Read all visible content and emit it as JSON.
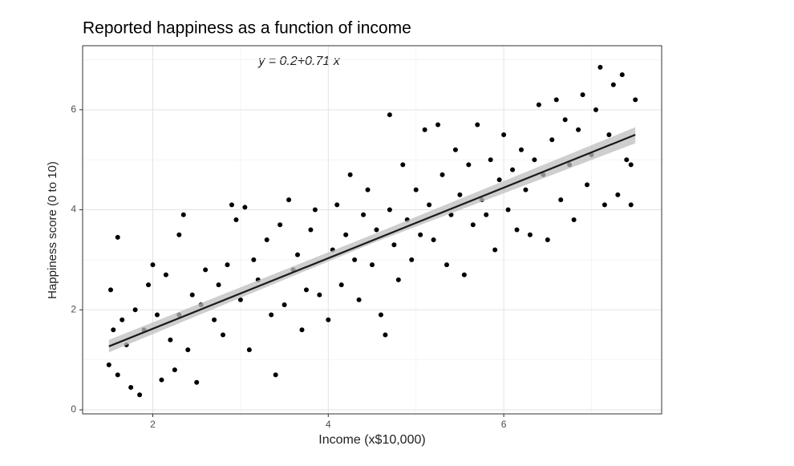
{
  "chart_data": {
    "type": "scatter",
    "title": "Reported happiness as a function of income",
    "xlabel": "Income (x$10,000)",
    "ylabel": "Happiness score (0 to 10)",
    "annotation": "y = 0.2+0.71 x",
    "xlim": [
      1.2,
      7.8
    ],
    "ylim": [
      -0.08,
      7.28
    ],
    "xticks": [
      2,
      4,
      6
    ],
    "yticks": [
      0,
      2,
      4,
      6
    ],
    "xminor": [
      3,
      5,
      7
    ],
    "yminor": [
      1,
      3,
      5,
      7
    ],
    "grid": true,
    "color": "#000000",
    "line_color": "#1a1a1a",
    "band_color": "#bdbdbd",
    "fit_line": {
      "x": [
        1.5,
        7.5
      ],
      "y": [
        1.27,
        5.5
      ]
    },
    "band": {
      "x": [
        1.5,
        4.5,
        7.5
      ],
      "lower": [
        1.15,
        3.33,
        5.33
      ],
      "upper": [
        1.4,
        3.5,
        5.65
      ]
    },
    "x": [
      1.5,
      1.55,
      1.6,
      1.52,
      1.6,
      1.65,
      1.7,
      1.75,
      1.8,
      1.85,
      1.9,
      1.95,
      2.0,
      2.05,
      2.1,
      2.15,
      2.2,
      2.25,
      2.3,
      2.35,
      2.3,
      2.4,
      2.45,
      2.5,
      2.55,
      2.6,
      2.7,
      2.75,
      2.8,
      2.85,
      2.9,
      2.95,
      3.0,
      3.05,
      3.1,
      3.15,
      3.2,
      3.3,
      3.35,
      3.4,
      3.45,
      3.5,
      3.55,
      3.6,
      3.65,
      3.7,
      3.75,
      3.8,
      3.85,
      3.9,
      4.0,
      4.05,
      4.1,
      4.15,
      4.2,
      4.25,
      4.3,
      4.35,
      4.4,
      4.45,
      4.5,
      4.55,
      4.6,
      4.65,
      4.7,
      4.7,
      4.75,
      4.8,
      4.85,
      4.9,
      4.95,
      5.0,
      5.05,
      5.1,
      5.15,
      5.2,
      5.25,
      5.3,
      5.35,
      5.4,
      5.45,
      5.5,
      5.55,
      5.6,
      5.65,
      5.7,
      5.75,
      5.8,
      5.85,
      5.9,
      5.95,
      6.0,
      6.05,
      6.1,
      6.15,
      6.2,
      6.25,
      6.3,
      6.35,
      6.4,
      6.45,
      6.5,
      6.55,
      6.6,
      6.65,
      6.7,
      6.75,
      6.8,
      6.85,
      6.9,
      6.95,
      7.0,
      7.05,
      7.1,
      7.15,
      7.2,
      7.25,
      7.3,
      7.35,
      7.4,
      7.45,
      7.5,
      7.45
    ],
    "y": [
      0.9,
      1.6,
      3.45,
      2.4,
      0.7,
      1.8,
      1.3,
      0.45,
      2.0,
      0.3,
      1.6,
      2.5,
      2.9,
      1.9,
      0.6,
      2.7,
      1.4,
      0.8,
      3.5,
      3.9,
      1.9,
      1.2,
      2.3,
      0.55,
      2.1,
      2.8,
      1.8,
      2.5,
      1.5,
      2.9,
      4.1,
      3.8,
      2.2,
      4.05,
      1.2,
      3.0,
      2.6,
      3.4,
      1.9,
      0.7,
      3.7,
      2.1,
      4.2,
      2.8,
      3.1,
      1.6,
      2.4,
      3.6,
      4.0,
      2.3,
      1.8,
      3.2,
      4.1,
      2.5,
      3.5,
      4.7,
      3.0,
      2.2,
      3.9,
      4.4,
      2.9,
      3.6,
      1.9,
      1.5,
      5.9,
      4.0,
      3.3,
      2.6,
      4.9,
      3.8,
      3.0,
      4.4,
      3.5,
      5.6,
      4.1,
      3.4,
      5.7,
      4.7,
      2.9,
      3.9,
      5.2,
      4.3,
      2.7,
      4.9,
      3.7,
      5.7,
      4.2,
      3.9,
      5.0,
      3.2,
      4.6,
      5.5,
      4.0,
      4.8,
      3.6,
      5.2,
      4.4,
      3.5,
      5.0,
      6.1,
      4.7,
      3.4,
      5.4,
      6.2,
      4.2,
      5.8,
      4.9,
      3.8,
      5.6,
      6.3,
      4.5,
      5.1,
      6.0,
      6.85,
      4.1,
      5.5,
      6.5,
      4.3,
      6.7,
      5.0,
      4.1,
      6.2,
      4.9
    ]
  }
}
